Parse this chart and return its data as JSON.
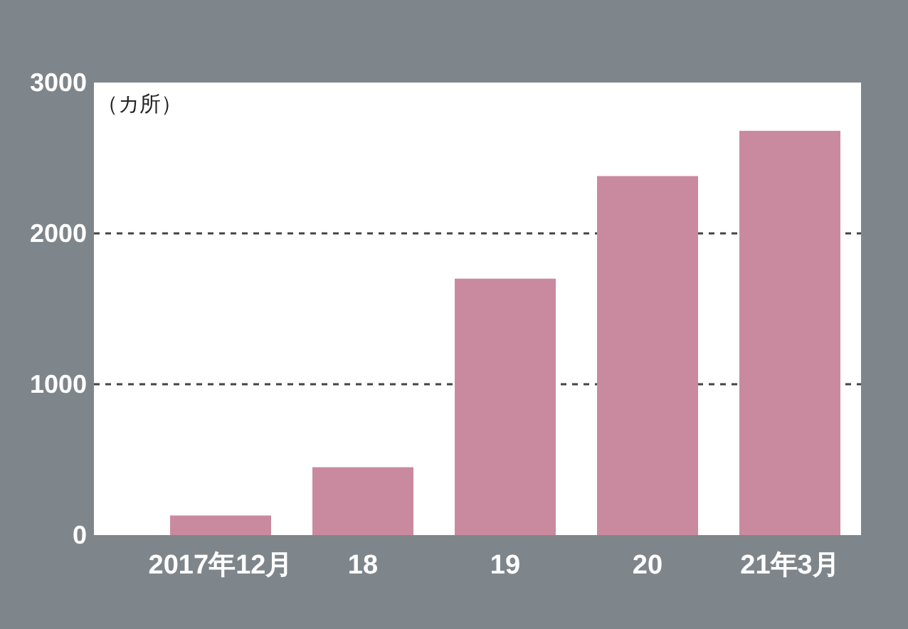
{
  "chart_data": {
    "type": "bar",
    "ylabel": "（カ所）",
    "categories": [
      "2017年12月",
      "18",
      "19",
      "20",
      "21年3月"
    ],
    "values": [
      130,
      450,
      1700,
      2380,
      2680
    ],
    "color": "#c98aa0",
    "ylim": [
      0,
      3000
    ],
    "yticks": [
      0,
      1000,
      2000,
      3000
    ],
    "grid": "y"
  }
}
